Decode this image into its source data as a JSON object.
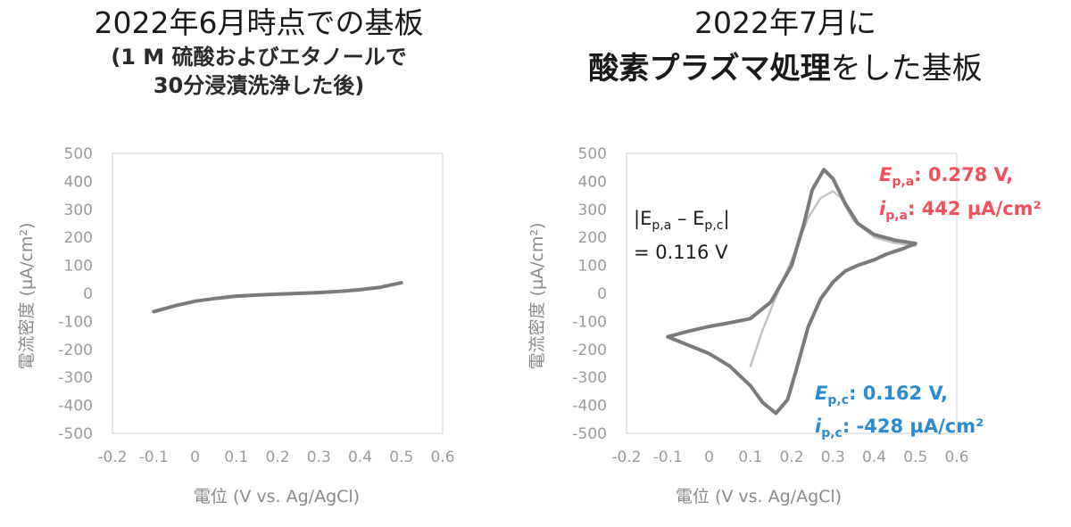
{
  "left": {
    "title": "2022年6月時点での基板",
    "subtitle_line1": "(1 M 硫酸およびエタノールで",
    "subtitle_line2": "30分浸漬洗浄した後)"
  },
  "right": {
    "title_line1": "2022年7月に",
    "title_bold": "酸素プラズマ処理",
    "title_rest": "をした基板"
  },
  "colors": {
    "curve": "#7a7a7a",
    "curve_light": "#c4c4c4",
    "frame": "#d8d8d8",
    "red": "#f0505a",
    "blue": "#2a8ad2"
  },
  "chart_data": [
    {
      "type": "line",
      "xlabel": "電位 (V vs. Ag/AgCl)",
      "ylabel": "電流密度 (µA/cm²)",
      "xlim": [
        -0.2,
        0.6
      ],
      "ylim": [
        -500,
        500
      ],
      "xticks": [
        "-0.2",
        "-0.1",
        "0",
        "0.1",
        "0.2",
        "0.3",
        "0.4",
        "0.5",
        "0.6"
      ],
      "yticks": [
        "500",
        "400",
        "300",
        "200",
        "100",
        "0",
        "-100",
        "-200",
        "-300",
        "-400",
        "-500"
      ],
      "grid": false,
      "series": [
        {
          "style": "dark",
          "x": [
            -0.1,
            -0.05,
            0.0,
            0.05,
            0.1,
            0.15,
            0.2,
            0.25,
            0.3,
            0.35,
            0.4,
            0.45,
            0.5
          ],
          "y": [
            -65,
            -45,
            -28,
            -18,
            -10,
            -6,
            -3,
            0,
            3,
            7,
            13,
            22,
            38
          ]
        }
      ]
    },
    {
      "type": "line",
      "xlabel": "電位 (V vs. Ag/AgCl)",
      "ylabel": "電流密度 (µA/cm²)",
      "xlim": [
        -0.2,
        0.6
      ],
      "ylim": [
        -500,
        500
      ],
      "xticks": [
        "-0.2",
        "-0.1",
        "0",
        "0.1",
        "0.2",
        "0.3",
        "0.4",
        "0.5",
        "0.6"
      ],
      "yticks": [
        "500",
        "400",
        "300",
        "200",
        "100",
        "0",
        "-100",
        "-200",
        "-300",
        "-400",
        "-500"
      ],
      "grid": false,
      "series": [
        {
          "style": "dark",
          "x": [
            -0.1,
            -0.05,
            0.0,
            0.05,
            0.1,
            0.15,
            0.2,
            0.23,
            0.25,
            0.278,
            0.3,
            0.33,
            0.36,
            0.4,
            0.45,
            0.5,
            0.47,
            0.43,
            0.4,
            0.36,
            0.33,
            0.3,
            0.27,
            0.24,
            0.21,
            0.19,
            0.162,
            0.13,
            0.1,
            0.05,
            0.0,
            -0.05,
            -0.1
          ],
          "y": [
            -155,
            -135,
            -118,
            -105,
            -90,
            -30,
            100,
            250,
            370,
            442,
            410,
            320,
            250,
            210,
            190,
            178,
            160,
            140,
            120,
            100,
            80,
            40,
            -20,
            -120,
            -280,
            -380,
            -428,
            -390,
            -330,
            -260,
            -215,
            -185,
            -155
          ]
        },
        {
          "style": "light",
          "x": [
            0.1,
            0.13,
            0.16,
            0.2,
            0.24,
            0.27,
            0.3,
            0.32,
            0.35,
            0.4,
            0.45,
            0.5
          ],
          "y": [
            -260,
            -130,
            -20,
            120,
            270,
            340,
            365,
            340,
            260,
            200,
            180,
            170
          ]
        }
      ],
      "annotations": {
        "delta_line1": "|E",
        "delta_line1_sub_a": "p,a",
        "delta_line1_mid": " – E",
        "delta_line1_sub_c": "p,c",
        "delta_line1_end": "|",
        "delta_line2": "= 0.116 V",
        "anodic_e_label": "E",
        "anodic_e_sub": "p,a",
        "anodic_e_value": ": 0.278 V,",
        "anodic_i_label": "i",
        "anodic_i_sub": "p,a",
        "anodic_i_value": ": 442 µA/cm²",
        "cathodic_e_label": "E",
        "cathodic_e_sub": "p,c",
        "cathodic_e_value": ": 0.162 V,",
        "cathodic_i_label": "i",
        "cathodic_i_sub": "p,c",
        "cathodic_i_value": ": -428 µA/cm²"
      }
    }
  ]
}
